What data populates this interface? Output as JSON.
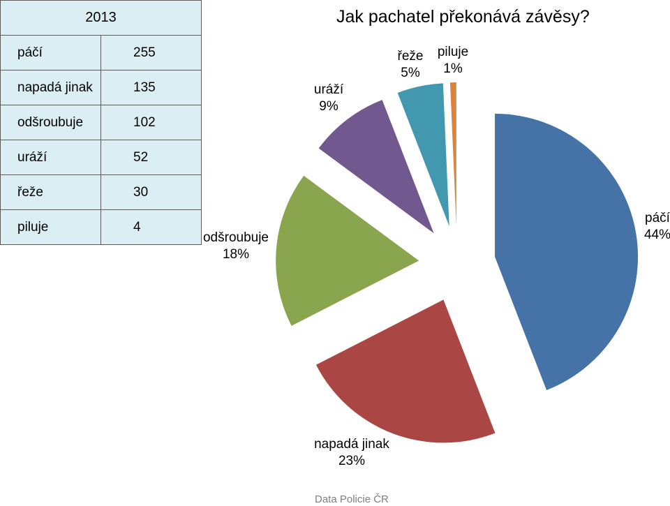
{
  "table": {
    "year_header": "2013",
    "rows": [
      {
        "label": "páčí",
        "value": "255"
      },
      {
        "label": "napadá jinak",
        "value": "135"
      },
      {
        "label": "odšroubuje",
        "value": "102"
      },
      {
        "label": "uráží",
        "value": "52"
      },
      {
        "label": "řeže",
        "value": "30"
      },
      {
        "label": "piluje",
        "value": "4"
      }
    ]
  },
  "source": "Data Policie ČR",
  "colors": [
    "#4572a7",
    "#aa4643",
    "#89a54e",
    "#71588f",
    "#4198af",
    "#db843d"
  ],
  "chart_data": {
    "type": "pie",
    "title": "Jak pachatel překonává závěsy?",
    "exploded": true,
    "slices": [
      {
        "label": "páčí",
        "value": 255,
        "percent_label": "44%"
      },
      {
        "label": "napadá jinak",
        "value": 135,
        "percent_label": "23%"
      },
      {
        "label": "odšroubuje",
        "value": 102,
        "percent_label": "18%"
      },
      {
        "label": "uráží",
        "value": 52,
        "percent_label": "9%"
      },
      {
        "label": "řeže",
        "value": 30,
        "percent_label": "5%"
      },
      {
        "label": "piluje",
        "value": 4,
        "percent_label": "1%"
      }
    ],
    "legend": "none"
  }
}
